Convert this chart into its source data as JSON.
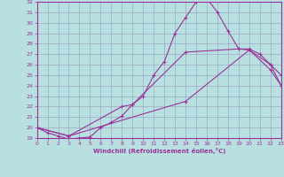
{
  "xlabel": "Windchill (Refroidissement éolien,°C)",
  "x_ticks": [
    0,
    1,
    2,
    3,
    4,
    5,
    6,
    7,
    8,
    9,
    10,
    11,
    12,
    13,
    14,
    15,
    16,
    17,
    18,
    19,
    20,
    21,
    22,
    23
  ],
  "ylim": [
    19,
    32
  ],
  "xlim": [
    0,
    23
  ],
  "yticks": [
    19,
    20,
    21,
    22,
    23,
    24,
    25,
    26,
    27,
    28,
    29,
    30,
    31,
    32
  ],
  "background_color": "#b8e0e0",
  "grid_color": "#9999bb",
  "line_color": "#993399",
  "line1_x": [
    0,
    1,
    2,
    3,
    4,
    5,
    6,
    7,
    8,
    9,
    10,
    11,
    12,
    13,
    14,
    15,
    16,
    17,
    18,
    19,
    20,
    21,
    22,
    23
  ],
  "line1_y": [
    20.0,
    19.5,
    19.2,
    18.9,
    19.0,
    19.1,
    20.0,
    20.5,
    21.1,
    22.2,
    23.0,
    25.0,
    26.3,
    29.0,
    30.5,
    32.0,
    32.3,
    31.0,
    29.2,
    27.5,
    27.5,
    27.0,
    26.0,
    25.0
  ],
  "line2_x": [
    0,
    3,
    8,
    9,
    14,
    19,
    20,
    22,
    23
  ],
  "line2_y": [
    20.0,
    19.2,
    22.0,
    22.2,
    27.2,
    27.5,
    27.4,
    26.0,
    24.0
  ],
  "line3_x": [
    0,
    3,
    14,
    20,
    22,
    23
  ],
  "line3_y": [
    20.0,
    19.2,
    22.5,
    27.4,
    25.5,
    24.0
  ]
}
